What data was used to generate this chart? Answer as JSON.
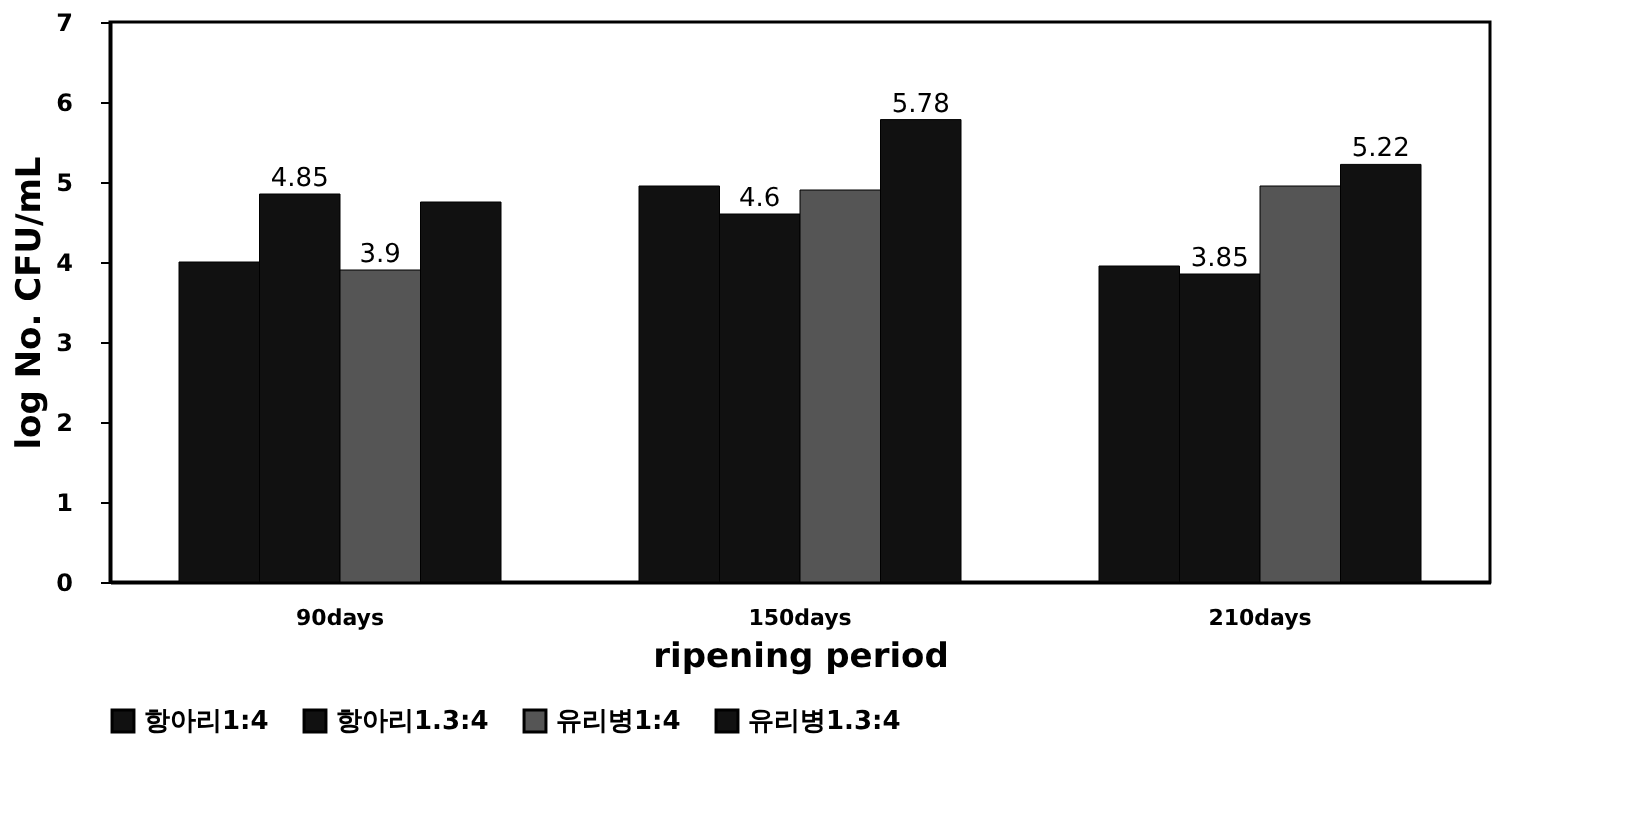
{
  "chart_data": {
    "type": "bar",
    "xlabel": "ripening period",
    "ylabel": "log No. CFU/mL",
    "categories": [
      "90days",
      "150days",
      "210days"
    ],
    "series": [
      {
        "name": "항아리1:4",
        "color": "#111111",
        "values": [
          4.0,
          4.95,
          3.95
        ],
        "value_labels": [
          null,
          null,
          null
        ]
      },
      {
        "name": "항아리1.3:4",
        "color": "#111111",
        "values": [
          4.85,
          4.6,
          3.85
        ],
        "value_labels": [
          "4.85",
          "4.6",
          "3.85"
        ]
      },
      {
        "name": "유리병1:4",
        "color": "#555555",
        "values": [
          3.9,
          4.9,
          4.95
        ],
        "value_labels": [
          "3.9",
          null,
          null
        ]
      },
      {
        "name": "유리병1.3:4",
        "color": "#111111",
        "values": [
          4.75,
          5.78,
          5.22
        ],
        "value_labels": [
          null,
          "5.78",
          "5.22"
        ]
      }
    ],
    "ylim": [
      0,
      7
    ],
    "yticks": [
      0,
      1,
      2,
      3,
      4,
      5,
      6,
      7
    ],
    "grid": false,
    "legend": "bottom"
  }
}
